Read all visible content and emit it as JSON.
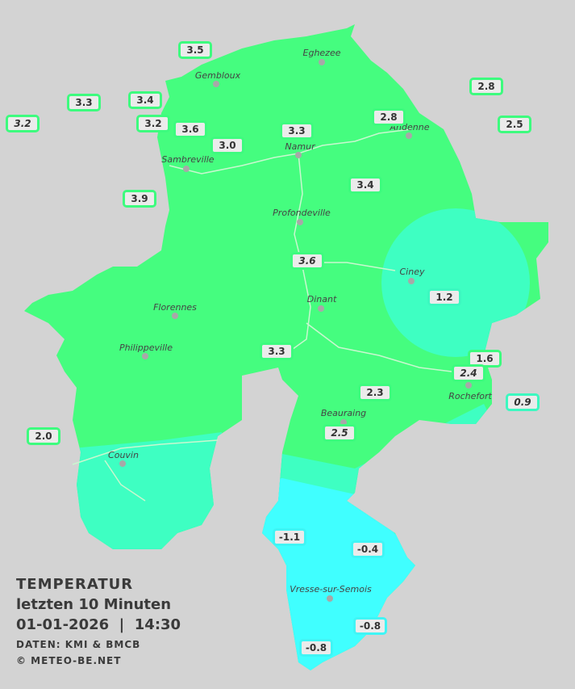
{
  "legend": {
    "title": "TEMPERATUR",
    "period": "letzten 10 Minuten",
    "datetime": "01-01-2026  |  14:30",
    "source": "DATEN: KMI & BMCB",
    "copyright": "© METEO-BE.NET"
  },
  "colors": {
    "background": "#d3d3d3",
    "warm": "#45fd7f",
    "mild": "#3effc2",
    "cold": "#40ffff",
    "border_line": "#c8f5c8"
  },
  "towns": [
    "Eghezee",
    "Gembloux",
    "Andenne",
    "Namur",
    "Sambreville",
    "Profondeville",
    "Ciney",
    "Dinant",
    "Florennes",
    "Philippeville",
    "Rochefort",
    "Beauraing",
    "Couvin",
    "Vresse-sur-Semois"
  ],
  "readings": [
    "3.5",
    "3.3",
    "3.2",
    "3.4",
    "3.2",
    "3.6",
    "3.0",
    "3.3",
    "2.8",
    "2.8",
    "2.5",
    "3.9",
    "3.4",
    "3.6",
    "1.2",
    "3.3",
    "1.6",
    "2.4",
    "2.3",
    "0.9",
    "2.5",
    "2.0",
    "-1.1",
    "-0.4",
    "-0.8",
    "-0.8"
  ]
}
